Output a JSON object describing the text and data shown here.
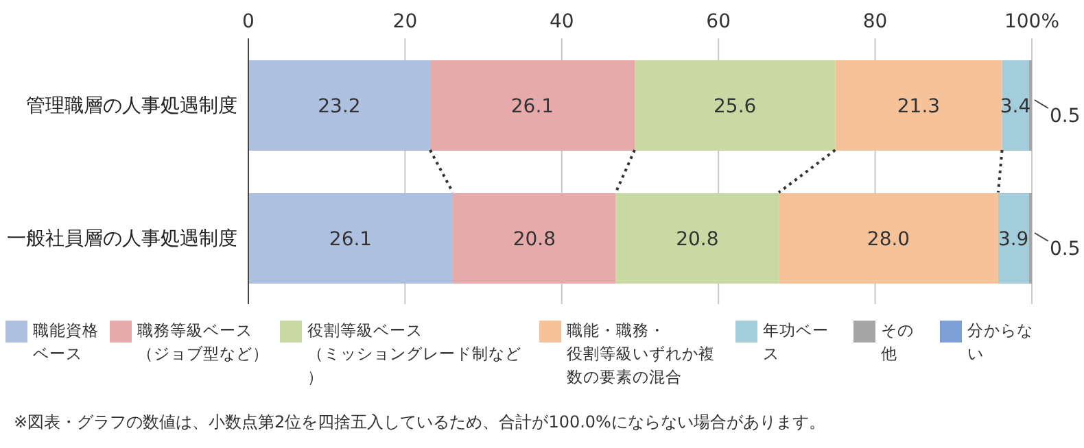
{
  "chart_data": {
    "type": "bar",
    "orientation": "horizontal",
    "stacked": true,
    "categories": [
      "管理職層の人事処遇制度",
      "一般社員層の人事処遇制度"
    ],
    "series": [
      {
        "name": "職能資格ベース",
        "color": "#aec0e0",
        "values": [
          23.2,
          26.1
        ],
        "value_labels": [
          "23.2",
          "26.1"
        ]
      },
      {
        "name": "職務等級ベース（ジョブ型など）",
        "color": "#e6aaaa",
        "values": [
          26.1,
          20.8
        ],
        "value_labels": [
          "26.1",
          "20.8"
        ]
      },
      {
        "name": "役割等級ベース（ミッショングレード制など）",
        "color": "#c9d9a3",
        "values": [
          25.6,
          20.8
        ],
        "value_labels": [
          "25.6",
          "20.8"
        ]
      },
      {
        "name": "職能・職務・役割等級いずれか複数の要素の混合",
        "color": "#f5c29a",
        "values": [
          21.3,
          28.0
        ],
        "value_labels": [
          "21.3",
          "28.0"
        ]
      },
      {
        "name": "年功ベース",
        "color": "#a4cddb",
        "values": [
          3.4,
          3.9
        ],
        "value_labels": [
          "3.4",
          "3.9"
        ]
      },
      {
        "name": "その他",
        "color": "#a6a6a6",
        "values": [
          0.5,
          0.5
        ],
        "value_labels": [
          "0.5",
          "0.5"
        ]
      },
      {
        "name": "分からない",
        "color": "#7f9fd8",
        "values": [
          null,
          null
        ]
      }
    ],
    "xlim": [
      0,
      100
    ],
    "xticks": [
      0,
      20,
      40,
      60,
      80,
      {
        "value": 100,
        "label": "100%"
      }
    ],
    "grid": "x",
    "legend": "bottom",
    "annotations": [
      "※図表・グラフの数値は、小数点第2位を四捨五入しているため、合計が100.0%にならない場合があります。"
    ]
  }
}
